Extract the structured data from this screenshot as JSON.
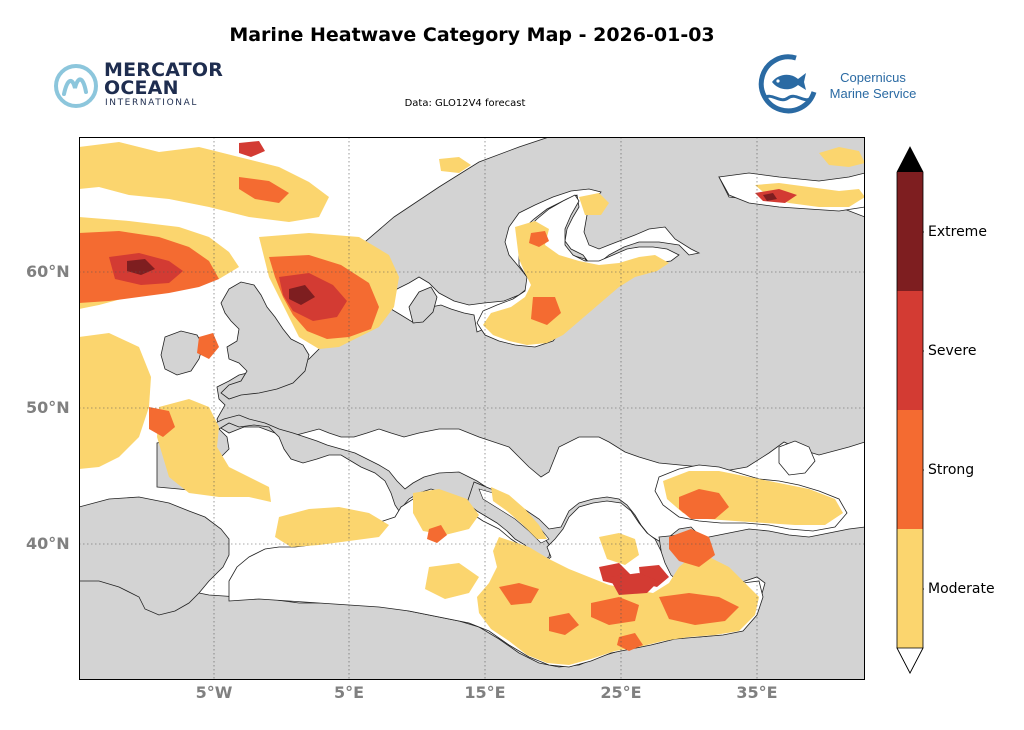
{
  "title": "Marine Heatwave Category Map - 2026-01-03",
  "subtitle": "Data: GLO12V4 forecast",
  "logos": {
    "left": {
      "line1": "MERCATOR",
      "line2": "OCEAN",
      "line3": "INTERNATIONAL"
    },
    "right": {
      "line1": "Copernicus",
      "line2": "Marine Service"
    }
  },
  "map": {
    "latitude_labels": [
      "60°N",
      "50°N",
      "40°N"
    ],
    "longitude_labels": [
      "5°W",
      "5°E",
      "15°E",
      "25°E",
      "35°E"
    ],
    "land_color": "#d3d3d3",
    "ocean_color": "#ffffff",
    "grid": true
  },
  "colorbar": {
    "categories": [
      {
        "label": "Extreme",
        "color": "#7e1e20"
      },
      {
        "label": "Severe",
        "color": "#d33b33"
      },
      {
        "label": "Strong",
        "color": "#f46b31"
      },
      {
        "label": "Moderate",
        "color": "#fbd56e"
      }
    ],
    "extend_max_color": "#000000",
    "extend_min_color": "#ffffff"
  }
}
